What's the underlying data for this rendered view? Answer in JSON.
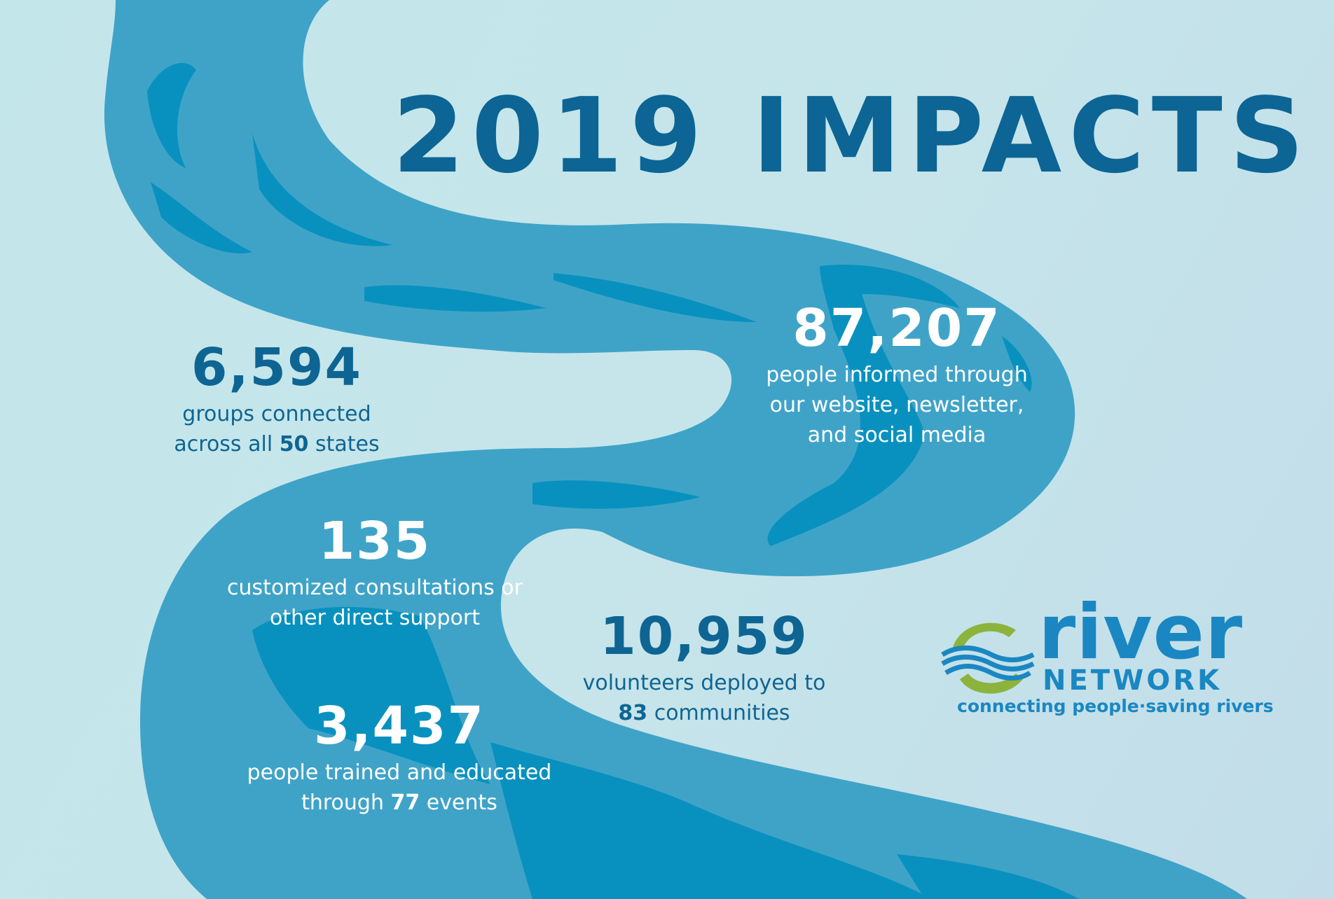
{
  "title": "2019 IMPACTS",
  "colors": {
    "background": "#c4e5ea",
    "river_outer": "#3fa3c8",
    "river_inner": "#0891bf",
    "text_dark": "#0e6593",
    "text_light": "#ffffff",
    "logo_blue": "#1a87c2",
    "logo_green": "#8cb43c"
  },
  "stats": {
    "groups": {
      "value": "6,594",
      "line1": "groups connected",
      "line2_pre": "across all ",
      "line2_bold": "50",
      "line2_post": " states"
    },
    "informed": {
      "value": "87,207",
      "line1": "people informed through",
      "line2": "our website, newsletter,",
      "line3": "and social media"
    },
    "consultations": {
      "value": "135",
      "line1": "customized consultations or",
      "line2": "other direct support"
    },
    "volunteers": {
      "value": "10,959",
      "line1": "volunteers deployed to",
      "line2_bold": "83",
      "line2_post": " communities"
    },
    "trained": {
      "value": "3,437",
      "line1": "people trained and educated",
      "line2_pre": "through ",
      "line2_bold": "77",
      "line2_post": " events"
    }
  },
  "logo": {
    "word": "river",
    "sub": "NETWORK",
    "tagline": "connecting people·saving rivers",
    "icon": "river-waves-circle-icon"
  }
}
